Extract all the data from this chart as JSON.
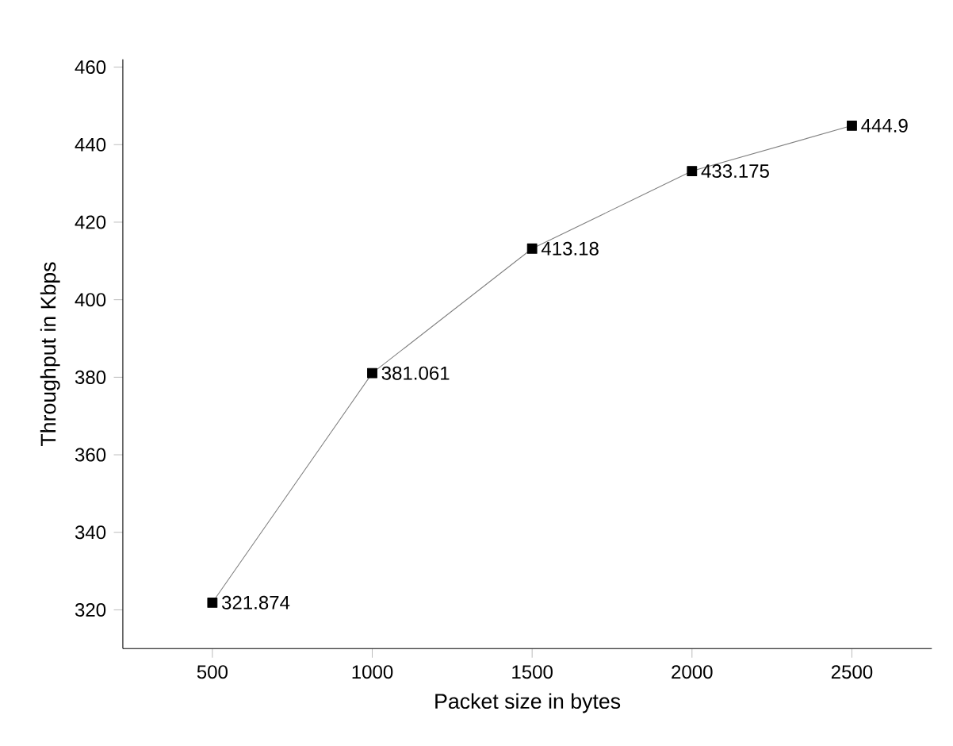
{
  "chart_data": {
    "type": "line",
    "xlabel": "Packet size in bytes",
    "ylabel": "Throughput in Kbps",
    "x": [
      500,
      1000,
      1500,
      2000,
      2500
    ],
    "series": [
      {
        "color": "#000000",
        "values": [
          321.874,
          381.061,
          413.18,
          433.175,
          444.9
        ],
        "value_labels": [
          "321.874",
          "381.061",
          "413.18",
          "433.175",
          "444.9"
        ]
      }
    ],
    "xlim": [
      220,
      2750
    ],
    "ylim": [
      310,
      462
    ],
    "xticks": [
      500,
      1000,
      1500,
      2000,
      2500
    ],
    "yticks": [
      320,
      340,
      360,
      380,
      400,
      420,
      440,
      460
    ],
    "marker": "square",
    "line_style": "solid",
    "grid": false
  }
}
